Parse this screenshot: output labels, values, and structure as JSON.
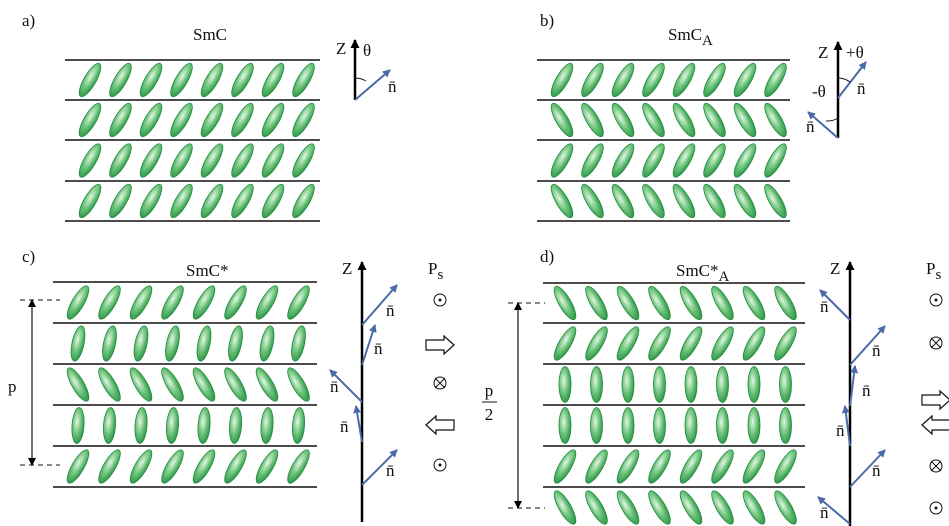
{
  "panels": [
    {
      "label": "a)",
      "title": "SmC",
      "axis_label": "Z",
      "angle_label": "θ",
      "director_labels": [
        "n̄"
      ]
    },
    {
      "label": "b)",
      "title": "SmC",
      "title_subscript": "A",
      "axis_label": "Z",
      "angle_labels": [
        "+θ",
        "-θ"
      ],
      "director_labels": [
        "n̄",
        "n̄"
      ]
    },
    {
      "label": "c)",
      "title": "SmC*",
      "axis_label": "Z",
      "polarization_label": "P",
      "polarization_subscript": "s",
      "pitch_label": "p",
      "director_labels": [
        "n̄",
        "n̄",
        "n̄",
        "n̄",
        "n̄"
      ]
    },
    {
      "label": "d)",
      "title": "SmC*",
      "title_subscript": "A",
      "axis_label": "Z",
      "polarization_label": "P",
      "polarization_subscript": "s",
      "pitch_numerator": "p",
      "pitch_denominator": "2",
      "director_labels": [
        "n̄",
        "n̄",
        "n̄",
        "n̄",
        "n̄",
        "n̄"
      ]
    }
  ]
}
